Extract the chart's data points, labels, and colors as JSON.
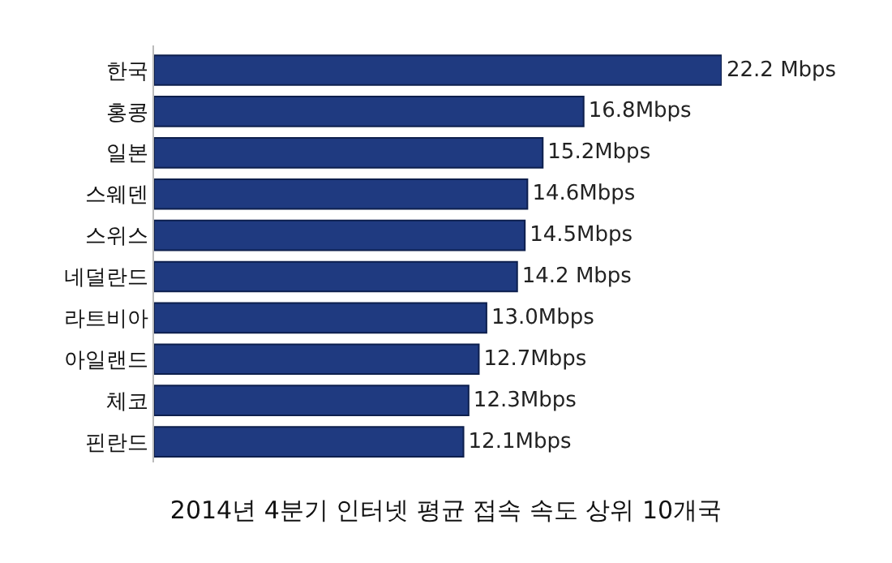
{
  "chart_data": {
    "type": "bar",
    "orientation": "horizontal",
    "title": "2014년 4분기 인터넷 평균 접속 속도 상위 10개국",
    "categories": [
      "한국",
      "홍콩",
      "일본",
      "스웨덴",
      "스위스",
      "네덜란드",
      "라트비아",
      "아일랜드",
      "체코",
      "핀란드"
    ],
    "values": [
      22.2,
      16.8,
      15.2,
      14.6,
      14.5,
      14.2,
      13.0,
      12.7,
      12.3,
      12.1
    ],
    "value_labels": [
      "22.2 Mbps",
      "16.8Mbps",
      "15.2Mbps",
      "14.6Mbps",
      "14.5Mbps",
      "14.2 Mbps",
      "13.0Mbps",
      "12.7Mbps",
      "12.3Mbps",
      "12.1Mbps"
    ],
    "color": "#1f3a80",
    "tick_labels": "y"
  }
}
